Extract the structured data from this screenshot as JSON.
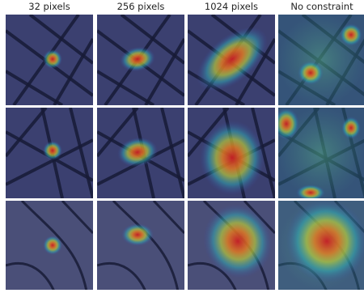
{
  "figure": {
    "column_headers": [
      "32 pixels",
      "256 pixels",
      "1024 pixels",
      "No constraint"
    ]
  }
}
